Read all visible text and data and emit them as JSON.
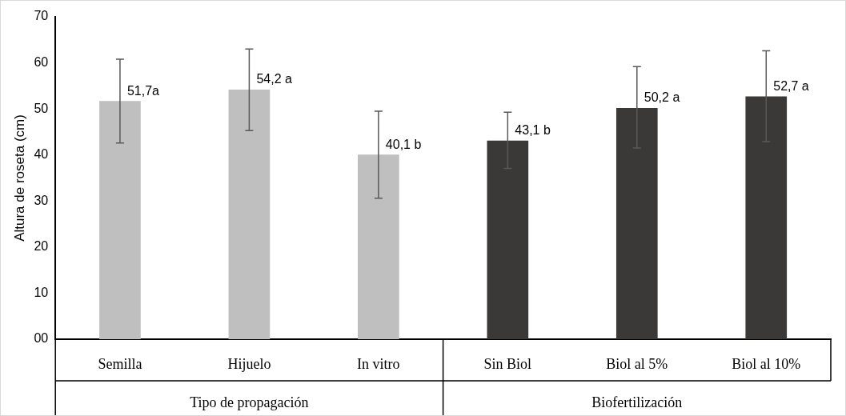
{
  "chart_data": {
    "type": "bar",
    "ylabel": "Altura de roseta (cm)",
    "categories": [
      "Semilla",
      "Hijuelo",
      "In vitro",
      "Sin Biol",
      "Biol al 5%",
      "Biol al 10%"
    ],
    "values": [
      51.7,
      54.2,
      40.1,
      43.1,
      50.2,
      52.7
    ],
    "colors": [
      "#bfbfbf",
      "#bfbfbf",
      "#bfbfbf",
      "#3a3937",
      "#3a3937",
      "#3a3937"
    ],
    "errors": [
      [
        42.6,
        60.8
      ],
      [
        45.3,
        63.0
      ],
      [
        30.6,
        49.5
      ],
      [
        37.1,
        49.3
      ],
      [
        41.5,
        59.2
      ],
      [
        42.9,
        62.6
      ]
    ],
    "value_labels": [
      "51,7a",
      "54,2 a",
      "40,1 b",
      "43,1 b",
      "50,2 a",
      "52,7 a"
    ],
    "ylim": [
      0,
      70
    ],
    "yticks": [
      {
        "value": 0,
        "label": "00"
      },
      10,
      20,
      30,
      40,
      50,
      60,
      70
    ],
    "annotations": [
      "Tipo de propagación",
      "Biofertilización"
    ],
    "grid": false,
    "legend": false
  }
}
